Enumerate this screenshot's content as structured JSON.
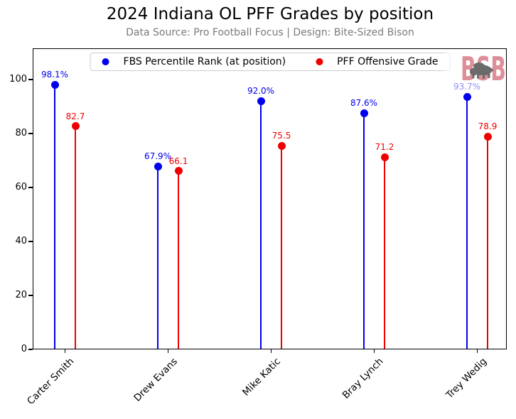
{
  "header": {
    "title": "2024 Indiana OL PFF Grades by position",
    "subtitle": "Data Source: Pro Football Focus | Design: Bite-Sized Bison"
  },
  "watermark": {
    "text": "BSB",
    "letters_color": "#dd8f99",
    "bison_color": "#6b6b6b"
  },
  "colors": {
    "blue": "#0000ee",
    "red": "#ee0000",
    "axis": "#000000",
    "subtitle_gray": "#7a7a7a"
  },
  "chart_data": {
    "type": "stem",
    "title": "2024 Indiana OL PFF Grades by position",
    "subtitle": "Data Source: Pro Football Focus | Design: Bite-Sized Bison",
    "categories": [
      "Carter Smith",
      "Drew Evans",
      "Mike Katic",
      "Bray Lynch",
      "Trey Wedig"
    ],
    "series": [
      {
        "name": "FBS Percentile Rank (at position)",
        "color": "#0000ee",
        "values": [
          98.1,
          67.9,
          92.0,
          87.6,
          93.7
        ],
        "labels": [
          "98.1%",
          "67.9%",
          "92.0%",
          "87.6%",
          "93.7%"
        ]
      },
      {
        "name": "PFF Offensive Grade",
        "color": "#ee0000",
        "values": [
          82.7,
          66.1,
          75.5,
          71.2,
          78.9
        ],
        "labels": [
          "82.7",
          "66.1",
          "75.5",
          "71.2",
          "78.9"
        ]
      }
    ],
    "xlabel": "",
    "ylabel": "",
    "ylim": [
      0,
      111.6
    ],
    "yticks": [
      0,
      20,
      40,
      60,
      80,
      100
    ],
    "grid": false,
    "legend_position": "upper center"
  }
}
